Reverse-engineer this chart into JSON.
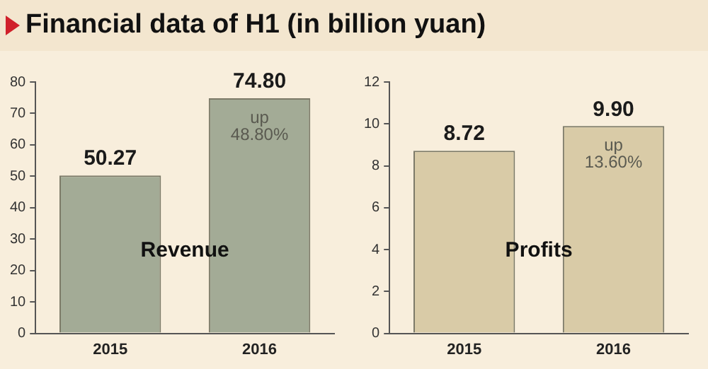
{
  "chart_data": [
    {
      "type": "bar",
      "title": "Financial data of H1 (in billion yuan)",
      "categories": [
        "2015",
        "2016"
      ],
      "values": [
        50.27,
        74.8
      ],
      "value_labels": [
        "50.27",
        "74.80"
      ],
      "color": "#a3ab96",
      "ylim": [
        0,
        80
      ],
      "yticks": [
        0,
        10,
        20,
        30,
        40,
        50,
        60,
        70,
        80
      ],
      "annotations": [
        "Revenue",
        "up 48.80%"
      ]
    },
    {
      "type": "bar",
      "categories": [
        "2015",
        "2016"
      ],
      "values": [
        8.72,
        9.9
      ],
      "value_labels": [
        "8.72",
        "9.90"
      ],
      "color": "#d9cba7",
      "ylim": [
        0,
        12
      ],
      "yticks": [
        0,
        2,
        4,
        6,
        8,
        10,
        12
      ],
      "annotations": [
        "Profits",
        "up 13.60%"
      ]
    }
  ]
}
